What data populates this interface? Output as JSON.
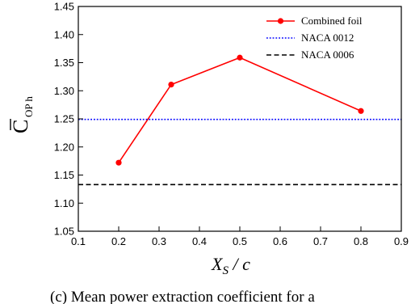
{
  "chart_data": {
    "type": "line",
    "xlabel_main": "X",
    "xlabel_sub": "S",
    "xlabel_rest": " / c",
    "ylabel_main": "C",
    "ylabel_sub": "OP h",
    "xlim": [
      0.1,
      0.9
    ],
    "ylim": [
      1.05,
      1.45
    ],
    "x_ticks": [
      "0.1",
      "0.2",
      "0.3",
      "0.4",
      "0.5",
      "0.6",
      "0.7",
      "0.8",
      "0.9"
    ],
    "y_ticks": [
      "1.05",
      "1.10",
      "1.15",
      "1.20",
      "1.25",
      "1.30",
      "1.35",
      "1.40",
      "1.45"
    ],
    "legend_position": "top-right",
    "grid": false,
    "series": [
      {
        "name": "Combined foil",
        "style": "solid-line-with-markers",
        "color": "#ff0000",
        "x": [
          0.2,
          0.33,
          0.5,
          0.8
        ],
        "y": [
          1.172,
          1.311,
          1.359,
          1.264
        ]
      },
      {
        "name": "NACA 0012",
        "style": "dotted",
        "color": "#0000ff",
        "x": [
          0.1,
          0.9
        ],
        "y": [
          1.249,
          1.249
        ]
      },
      {
        "name": "NACA 0006",
        "style": "dashed",
        "color": "#000000",
        "x": [
          0.1,
          0.9
        ],
        "y": [
          1.133,
          1.133
        ]
      }
    ]
  },
  "caption_visible": "(c) Mean power extraction coefficient for a"
}
